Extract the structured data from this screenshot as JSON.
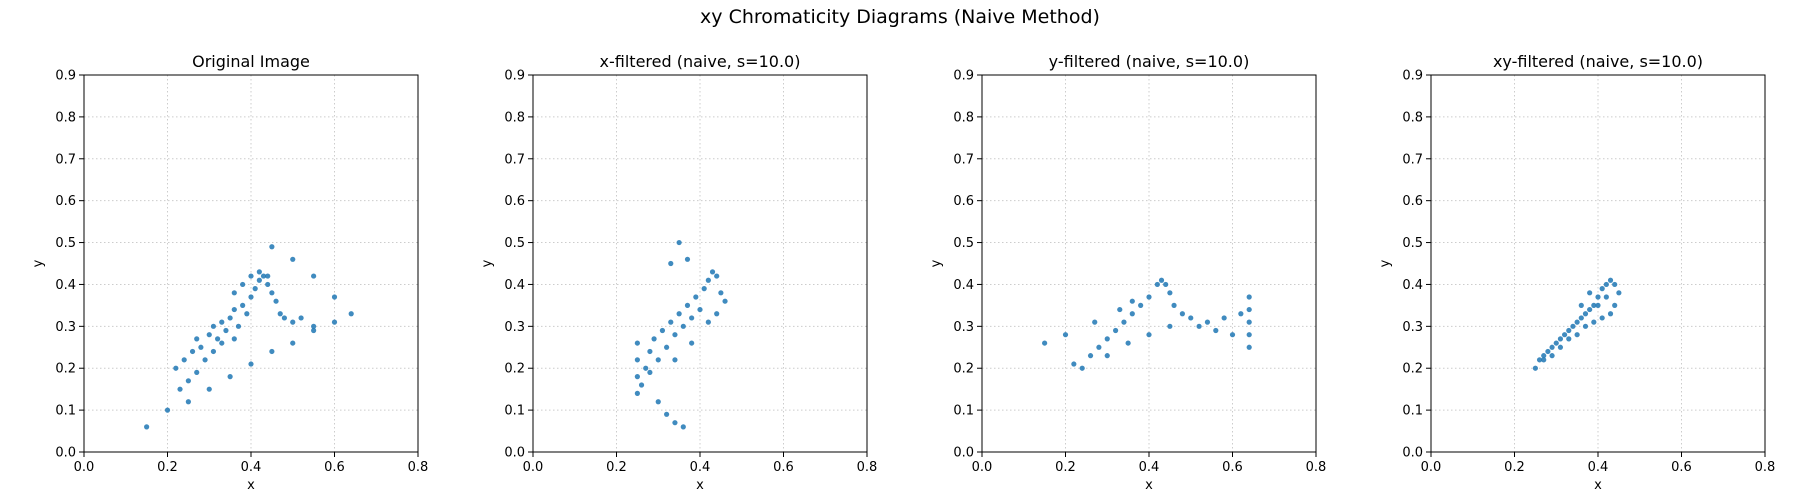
{
  "figure": {
    "title": "xy Chromaticity Diagrams (Naive Method)"
  },
  "style": {
    "point_color": "#1f77b4",
    "grid_color": "#cccccc",
    "axis_color": "#000000"
  },
  "chart_data": [
    {
      "type": "scatter",
      "title": "Original Image",
      "xlabel": "x",
      "ylabel": "y",
      "xlim": [
        0.0,
        0.8
      ],
      "ylim": [
        0.0,
        0.9
      ],
      "xticks": [
        "0.0",
        "0.2",
        "0.4",
        "0.6",
        "0.8"
      ],
      "yticks": [
        "0.0",
        "0.1",
        "0.2",
        "0.3",
        "0.4",
        "0.5",
        "0.6",
        "0.7",
        "0.8",
        "0.9"
      ],
      "grid": true,
      "grid_style": "dotted",
      "points": [
        {
          "x": 0.15,
          "y": 0.06
        },
        {
          "x": 0.2,
          "y": 0.1
        },
        {
          "x": 0.25,
          "y": 0.12
        },
        {
          "x": 0.3,
          "y": 0.15
        },
        {
          "x": 0.35,
          "y": 0.18
        },
        {
          "x": 0.4,
          "y": 0.21
        },
        {
          "x": 0.45,
          "y": 0.24
        },
        {
          "x": 0.5,
          "y": 0.26
        },
        {
          "x": 0.55,
          "y": 0.29
        },
        {
          "x": 0.6,
          "y": 0.31
        },
        {
          "x": 0.64,
          "y": 0.33
        },
        {
          "x": 0.45,
          "y": 0.49
        },
        {
          "x": 0.5,
          "y": 0.46
        },
        {
          "x": 0.55,
          "y": 0.42
        },
        {
          "x": 0.6,
          "y": 0.37
        },
        {
          "x": 0.22,
          "y": 0.2
        },
        {
          "x": 0.24,
          "y": 0.22
        },
        {
          "x": 0.26,
          "y": 0.24
        },
        {
          "x": 0.27,
          "y": 0.27
        },
        {
          "x": 0.28,
          "y": 0.25
        },
        {
          "x": 0.3,
          "y": 0.28
        },
        {
          "x": 0.31,
          "y": 0.3
        },
        {
          "x": 0.32,
          "y": 0.27
        },
        {
          "x": 0.33,
          "y": 0.31
        },
        {
          "x": 0.34,
          "y": 0.29
        },
        {
          "x": 0.35,
          "y": 0.32
        },
        {
          "x": 0.36,
          "y": 0.34
        },
        {
          "x": 0.37,
          "y": 0.3
        },
        {
          "x": 0.38,
          "y": 0.35
        },
        {
          "x": 0.39,
          "y": 0.33
        },
        {
          "x": 0.4,
          "y": 0.37
        },
        {
          "x": 0.41,
          "y": 0.39
        },
        {
          "x": 0.42,
          "y": 0.41
        },
        {
          "x": 0.43,
          "y": 0.42
        },
        {
          "x": 0.44,
          "y": 0.4
        },
        {
          "x": 0.45,
          "y": 0.38
        },
        {
          "x": 0.46,
          "y": 0.36
        },
        {
          "x": 0.47,
          "y": 0.33
        },
        {
          "x": 0.48,
          "y": 0.32
        },
        {
          "x": 0.5,
          "y": 0.31
        },
        {
          "x": 0.52,
          "y": 0.32
        },
        {
          "x": 0.55,
          "y": 0.3
        },
        {
          "x": 0.29,
          "y": 0.22
        },
        {
          "x": 0.31,
          "y": 0.24
        },
        {
          "x": 0.33,
          "y": 0.26
        },
        {
          "x": 0.36,
          "y": 0.27
        },
        {
          "x": 0.25,
          "y": 0.17
        },
        {
          "x": 0.27,
          "y": 0.19
        },
        {
          "x": 0.23,
          "y": 0.15
        },
        {
          "x": 0.36,
          "y": 0.38
        },
        {
          "x": 0.38,
          "y": 0.4
        },
        {
          "x": 0.4,
          "y": 0.42
        },
        {
          "x": 0.42,
          "y": 0.43
        },
        {
          "x": 0.44,
          "y": 0.42
        }
      ]
    },
    {
      "type": "scatter",
      "title": "x-filtered (naive, s=10.0)",
      "xlabel": "x",
      "ylabel": "y",
      "xlim": [
        0.0,
        0.8
      ],
      "ylim": [
        0.0,
        0.9
      ],
      "xticks": [
        "0.0",
        "0.2",
        "0.4",
        "0.6",
        "0.8"
      ],
      "yticks": [
        "0.0",
        "0.1",
        "0.2",
        "0.3",
        "0.4",
        "0.5",
        "0.6",
        "0.7",
        "0.8",
        "0.9"
      ],
      "grid": true,
      "grid_style": "dotted",
      "points": [
        {
          "x": 0.25,
          "y": 0.14
        },
        {
          "x": 0.25,
          "y": 0.18
        },
        {
          "x": 0.25,
          "y": 0.22
        },
        {
          "x": 0.25,
          "y": 0.26
        },
        {
          "x": 0.26,
          "y": 0.16
        },
        {
          "x": 0.27,
          "y": 0.2
        },
        {
          "x": 0.28,
          "y": 0.24
        },
        {
          "x": 0.29,
          "y": 0.27
        },
        {
          "x": 0.3,
          "y": 0.22
        },
        {
          "x": 0.31,
          "y": 0.29
        },
        {
          "x": 0.32,
          "y": 0.25
        },
        {
          "x": 0.33,
          "y": 0.31
        },
        {
          "x": 0.34,
          "y": 0.28
        },
        {
          "x": 0.35,
          "y": 0.33
        },
        {
          "x": 0.36,
          "y": 0.3
        },
        {
          "x": 0.37,
          "y": 0.35
        },
        {
          "x": 0.38,
          "y": 0.32
        },
        {
          "x": 0.39,
          "y": 0.37
        },
        {
          "x": 0.4,
          "y": 0.34
        },
        {
          "x": 0.41,
          "y": 0.39
        },
        {
          "x": 0.42,
          "y": 0.41
        },
        {
          "x": 0.43,
          "y": 0.43
        },
        {
          "x": 0.44,
          "y": 0.42
        },
        {
          "x": 0.45,
          "y": 0.38
        },
        {
          "x": 0.46,
          "y": 0.36
        },
        {
          "x": 0.44,
          "y": 0.33
        },
        {
          "x": 0.42,
          "y": 0.31
        },
        {
          "x": 0.3,
          "y": 0.12
        },
        {
          "x": 0.32,
          "y": 0.09
        },
        {
          "x": 0.34,
          "y": 0.07
        },
        {
          "x": 0.36,
          "y": 0.06
        },
        {
          "x": 0.33,
          "y": 0.45
        },
        {
          "x": 0.35,
          "y": 0.5
        },
        {
          "x": 0.37,
          "y": 0.46
        },
        {
          "x": 0.28,
          "y": 0.19
        },
        {
          "x": 0.34,
          "y": 0.22
        },
        {
          "x": 0.38,
          "y": 0.26
        }
      ]
    },
    {
      "type": "scatter",
      "title": "y-filtered (naive, s=10.0)",
      "xlabel": "x",
      "ylabel": "y",
      "xlim": [
        0.0,
        0.8
      ],
      "ylim": [
        0.0,
        0.9
      ],
      "xticks": [
        "0.0",
        "0.2",
        "0.4",
        "0.6",
        "0.8"
      ],
      "yticks": [
        "0.0",
        "0.1",
        "0.2",
        "0.3",
        "0.4",
        "0.5",
        "0.6",
        "0.7",
        "0.8",
        "0.9"
      ],
      "grid": true,
      "grid_style": "dotted",
      "points": [
        {
          "x": 0.15,
          "y": 0.26
        },
        {
          "x": 0.2,
          "y": 0.28
        },
        {
          "x": 0.22,
          "y": 0.21
        },
        {
          "x": 0.24,
          "y": 0.2
        },
        {
          "x": 0.26,
          "y": 0.23
        },
        {
          "x": 0.28,
          "y": 0.25
        },
        {
          "x": 0.3,
          "y": 0.27
        },
        {
          "x": 0.32,
          "y": 0.29
        },
        {
          "x": 0.34,
          "y": 0.31
        },
        {
          "x": 0.36,
          "y": 0.33
        },
        {
          "x": 0.38,
          "y": 0.35
        },
        {
          "x": 0.4,
          "y": 0.37
        },
        {
          "x": 0.42,
          "y": 0.4
        },
        {
          "x": 0.43,
          "y": 0.41
        },
        {
          "x": 0.44,
          "y": 0.4
        },
        {
          "x": 0.45,
          "y": 0.38
        },
        {
          "x": 0.46,
          "y": 0.35
        },
        {
          "x": 0.48,
          "y": 0.33
        },
        {
          "x": 0.5,
          "y": 0.32
        },
        {
          "x": 0.52,
          "y": 0.3
        },
        {
          "x": 0.54,
          "y": 0.31
        },
        {
          "x": 0.56,
          "y": 0.29
        },
        {
          "x": 0.58,
          "y": 0.32
        },
        {
          "x": 0.6,
          "y": 0.28
        },
        {
          "x": 0.62,
          "y": 0.33
        },
        {
          "x": 0.64,
          "y": 0.25
        },
        {
          "x": 0.64,
          "y": 0.28
        },
        {
          "x": 0.64,
          "y": 0.31
        },
        {
          "x": 0.64,
          "y": 0.34
        },
        {
          "x": 0.64,
          "y": 0.37
        },
        {
          "x": 0.3,
          "y": 0.23
        },
        {
          "x": 0.35,
          "y": 0.26
        },
        {
          "x": 0.4,
          "y": 0.28
        },
        {
          "x": 0.45,
          "y": 0.3
        },
        {
          "x": 0.27,
          "y": 0.31
        },
        {
          "x": 0.33,
          "y": 0.34
        },
        {
          "x": 0.36,
          "y": 0.36
        }
      ]
    },
    {
      "type": "scatter",
      "title": "xy-filtered (naive, s=10.0)",
      "xlabel": "x",
      "ylabel": "y",
      "xlim": [
        0.0,
        0.8
      ],
      "ylim": [
        0.0,
        0.9
      ],
      "xticks": [
        "0.0",
        "0.2",
        "0.4",
        "0.6",
        "0.8"
      ],
      "yticks": [
        "0.0",
        "0.1",
        "0.2",
        "0.3",
        "0.4",
        "0.5",
        "0.6",
        "0.7",
        "0.8",
        "0.9"
      ],
      "grid": true,
      "grid_style": "dotted",
      "points": [
        {
          "x": 0.25,
          "y": 0.2
        },
        {
          "x": 0.26,
          "y": 0.22
        },
        {
          "x": 0.27,
          "y": 0.23
        },
        {
          "x": 0.28,
          "y": 0.24
        },
        {
          "x": 0.29,
          "y": 0.25
        },
        {
          "x": 0.3,
          "y": 0.26
        },
        {
          "x": 0.31,
          "y": 0.27
        },
        {
          "x": 0.32,
          "y": 0.28
        },
        {
          "x": 0.33,
          "y": 0.29
        },
        {
          "x": 0.34,
          "y": 0.3
        },
        {
          "x": 0.35,
          "y": 0.31
        },
        {
          "x": 0.36,
          "y": 0.32
        },
        {
          "x": 0.37,
          "y": 0.33
        },
        {
          "x": 0.38,
          "y": 0.34
        },
        {
          "x": 0.39,
          "y": 0.35
        },
        {
          "x": 0.4,
          "y": 0.37
        },
        {
          "x": 0.41,
          "y": 0.39
        },
        {
          "x": 0.42,
          "y": 0.4
        },
        {
          "x": 0.43,
          "y": 0.41
        },
        {
          "x": 0.44,
          "y": 0.4
        },
        {
          "x": 0.45,
          "y": 0.38
        },
        {
          "x": 0.44,
          "y": 0.35
        },
        {
          "x": 0.43,
          "y": 0.33
        },
        {
          "x": 0.41,
          "y": 0.32
        },
        {
          "x": 0.39,
          "y": 0.31
        },
        {
          "x": 0.37,
          "y": 0.3
        },
        {
          "x": 0.35,
          "y": 0.28
        },
        {
          "x": 0.33,
          "y": 0.27
        },
        {
          "x": 0.31,
          "y": 0.25
        },
        {
          "x": 0.29,
          "y": 0.23
        },
        {
          "x": 0.27,
          "y": 0.22
        },
        {
          "x": 0.38,
          "y": 0.38
        },
        {
          "x": 0.4,
          "y": 0.35
        },
        {
          "x": 0.42,
          "y": 0.37
        },
        {
          "x": 0.36,
          "y": 0.35
        }
      ]
    }
  ]
}
